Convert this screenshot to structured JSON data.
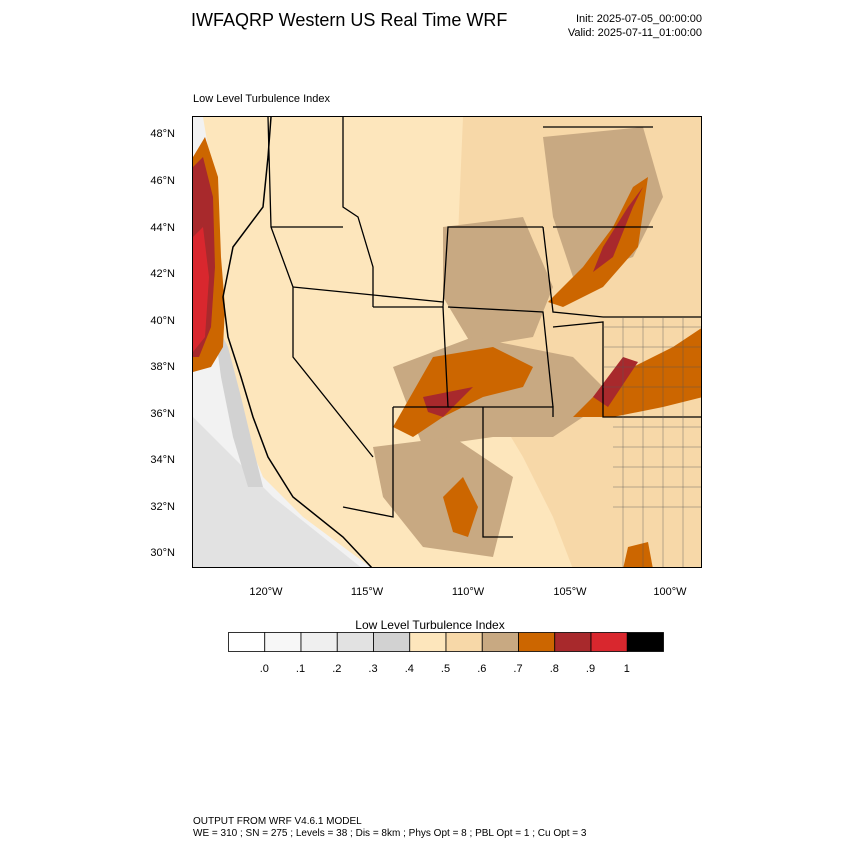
{
  "header": {
    "title": "IWFAQRP Western US Real Time WRF",
    "init": "Init: 2025-07-05_00:00:00",
    "valid": "Valid: 2025-07-11_01:00:00"
  },
  "plot": {
    "subtitle": "Low Level Turbulence Index",
    "lat_labels": [
      "48°N",
      "46°N",
      "44°N",
      "42°N",
      "40°N",
      "38°N",
      "36°N",
      "34°N",
      "32°N",
      "30°N"
    ],
    "lon_labels": [
      "120°W",
      "115°W",
      "110°W",
      "105°W",
      "100°W"
    ]
  },
  "colorbar": {
    "title": "Low Level Turbulence Index",
    "labels": [
      ".0",
      ".1",
      ".2",
      ".3",
      ".4",
      ".5",
      ".6",
      ".7",
      ".8",
      ".9",
      "1"
    ],
    "colors": [
      "#ffffff",
      "#f7f7f7",
      "#efefef",
      "#e2e2e2",
      "#d2d2d2",
      "#fde6bc",
      "#f7d8a8",
      "#c8a982",
      "#cc6600",
      "#a8292c",
      "#d9272e",
      "#000000"
    ]
  },
  "footer": {
    "line1": "OUTPUT FROM WRF V4.6.1 MODEL",
    "line2": "WE = 310 ; SN = 275 ; Levels = 38 ; Dis = 8km ; Phys Opt = 8 ; PBL Opt = 1 ; Cu Opt = 3"
  }
}
